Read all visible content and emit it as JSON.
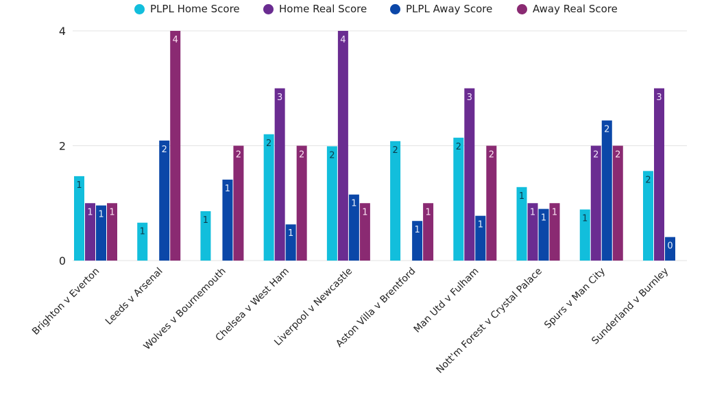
{
  "chart_data": {
    "type": "bar",
    "title": "",
    "xlabel": "",
    "ylabel": "",
    "ylim": [
      0,
      4
    ],
    "yticks": [
      0,
      2,
      4
    ],
    "grid": true,
    "legend_position": "top-center",
    "categories": [
      "Brighton v Everton",
      "Leeds v Arsenal",
      "Wolves v Bournemouth",
      "Chelsea v West Ham",
      "Liverpool v Newcastle",
      "Aston Villa v Brentford",
      "Man Utd v Fulham",
      "Nott'm Forest v Crystal Palace",
      "Spurs v Man City",
      "Sunderland v Burnley"
    ],
    "series": [
      {
        "name": "PLPL Home Score",
        "color": "#12BEDC",
        "label_color": "#0B3A4A",
        "values": [
          1.47,
          0.66,
          0.86,
          2.2,
          1.99,
          2.08,
          2.14,
          1.28,
          0.89,
          1.56
        ],
        "labels": [
          "1",
          "1",
          "1",
          "2",
          "2",
          "2",
          "2",
          "1",
          "1",
          "2"
        ]
      },
      {
        "name": "Home Real Score",
        "color": "#6A2C91",
        "label_color": "#F1E4FA",
        "values": [
          1,
          null,
          null,
          3,
          4,
          null,
          3,
          1,
          2,
          3
        ],
        "labels": [
          "1",
          "",
          "",
          "3",
          "4",
          "",
          "3",
          "1",
          "2",
          "3"
        ]
      },
      {
        "name": "PLPL Away Score",
        "color": "#0B47A8",
        "label_color": "#E6EEFA",
        "values": [
          0.96,
          2.09,
          1.41,
          0.63,
          1.15,
          0.69,
          0.78,
          0.9,
          2.44,
          0.41
        ],
        "labels": [
          "1",
          "2",
          "1",
          "1",
          "1",
          "1",
          "1",
          "1",
          "2",
          "0"
        ]
      },
      {
        "name": "Away Real Score",
        "color": "#8A2A72",
        "label_color": "#FBE3F3",
        "values": [
          1,
          4,
          2,
          2,
          1,
          1,
          2,
          1,
          2,
          null
        ],
        "labels": [
          "1",
          "4",
          "2",
          "2",
          "1",
          "1",
          "2",
          "1",
          "2",
          ""
        ]
      }
    ]
  }
}
